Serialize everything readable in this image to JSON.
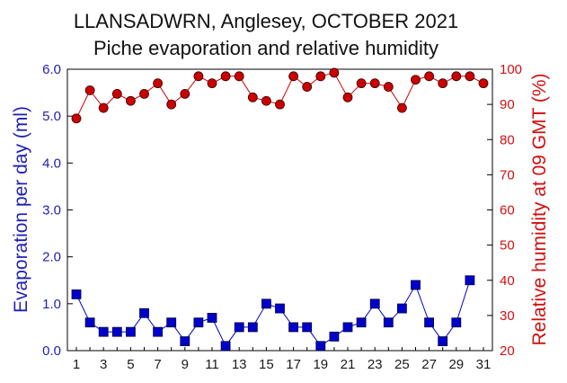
{
  "chart_data": {
    "type": "line",
    "title": "LLANSADWRN, Anglesey, OCTOBER 2021",
    "subtitle": "Piche evaporation and relative humidity",
    "x": [
      1,
      2,
      3,
      4,
      5,
      6,
      7,
      8,
      9,
      10,
      11,
      12,
      13,
      14,
      15,
      16,
      17,
      18,
      19,
      20,
      21,
      22,
      23,
      24,
      25,
      26,
      27,
      28,
      29,
      30,
      31
    ],
    "x_tick_labels": [
      "1",
      "3",
      "5",
      "7",
      "9",
      "11",
      "13",
      "15",
      "17",
      "19",
      "21",
      "23",
      "25",
      "27",
      "29",
      "31"
    ],
    "xlim": [
      1,
      31
    ],
    "ylabel": "Evaporation per day (ml)",
    "ylim": [
      0,
      6
    ],
    "y_tick_labels": [
      "0.0",
      "1.0",
      "2.0",
      "3.0",
      "4.0",
      "5.0",
      "6.0"
    ],
    "y2label": "Relative humidity at 09 GMT (%)",
    "y2lim": [
      20,
      100
    ],
    "y2_tick_labels": [
      "20",
      "30",
      "40",
      "50",
      "60",
      "70",
      "80",
      "90",
      "100"
    ],
    "grid": false,
    "series": [
      {
        "axis": "left",
        "marker": "square",
        "color": "#0000cc",
        "values": [
          1.2,
          0.6,
          0.4,
          0.4,
          0.4,
          0.8,
          0.4,
          0.6,
          0.2,
          0.6,
          0.7,
          0.1,
          0.5,
          0.5,
          1.0,
          0.9,
          0.5,
          0.5,
          0.1,
          0.3,
          0.5,
          0.6,
          1.0,
          0.6,
          0.9,
          1.4,
          0.6,
          0.2,
          0.6,
          1.5,
          null
        ]
      },
      {
        "axis": "right",
        "marker": "circle",
        "color": "#cc0000",
        "values": [
          86,
          94,
          89,
          93,
          91,
          93,
          96,
          90,
          93,
          98,
          96,
          98,
          98,
          92,
          91,
          90,
          98,
          95,
          98,
          99,
          92,
          96,
          96,
          95,
          89,
          97,
          98,
          96,
          98,
          98,
          96
        ]
      }
    ]
  }
}
